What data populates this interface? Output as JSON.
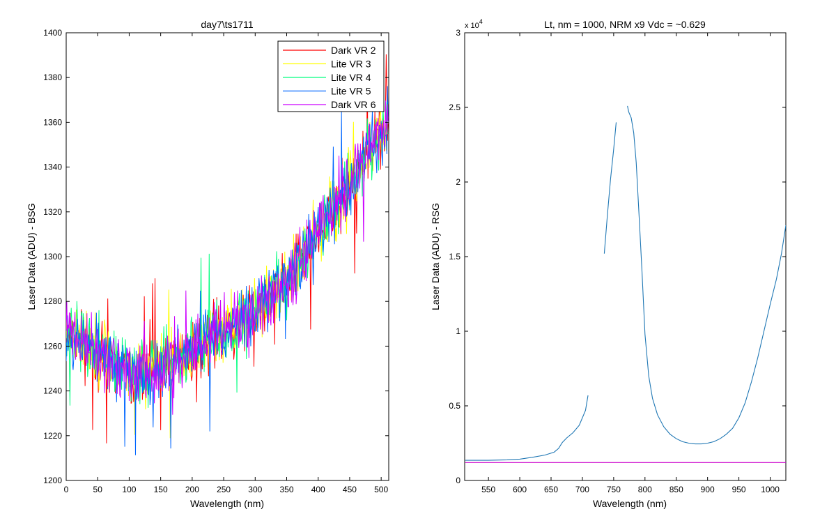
{
  "chart_data": [
    {
      "type": "line",
      "title": "day7\\ts1711",
      "xlabel": "Wavelength (nm)",
      "ylabel": "Laser Data (ADU) - BSG",
      "xlim": [
        0,
        512
      ],
      "ylim": [
        1200,
        1400
      ],
      "xticks": [
        0,
        50,
        100,
        150,
        200,
        250,
        300,
        350,
        400,
        450,
        500
      ],
      "yticks": [
        1200,
        1220,
        1240,
        1260,
        1280,
        1300,
        1320,
        1340,
        1360,
        1380,
        1400
      ],
      "legend_position": "top-right",
      "series": [
        {
          "name": "Dark VR 2",
          "color": "#ff0000",
          "seed": 11
        },
        {
          "name": "Lite VR 3",
          "color": "#ffff00",
          "seed": 23
        },
        {
          "name": "Lite VR 4",
          "color": "#00ff7f",
          "seed": 37
        },
        {
          "name": "Lite VR 5",
          "color": "#0066ff",
          "seed": 53
        },
        {
          "name": "Dark VR 6",
          "color": "#cc00ff",
          "seed": 71
        }
      ],
      "trend": {
        "x": [
          0,
          50,
          100,
          120,
          150,
          200,
          250,
          300,
          350,
          400,
          450,
          480,
          510
        ],
        "y": [
          1268,
          1257,
          1248,
          1247,
          1250,
          1258,
          1266,
          1276,
          1290,
          1310,
          1332,
          1348,
          1360
        ]
      },
      "noise_amplitude": 14
    },
    {
      "type": "line",
      "title": "Lt, nm = 1000, NRM x9 Vdc = ~0.629",
      "xlabel": "Wavelength (nm)",
      "ylabel": "Laser Data (ADU) - RSG",
      "y_multiplier": "x 10",
      "y_multiplier_exp": "4",
      "xlim": [
        512,
        1025
      ],
      "ylim": [
        0,
        3
      ],
      "xticks": [
        550,
        600,
        650,
        700,
        750,
        800,
        850,
        900,
        950,
        1000
      ],
      "yticks": [
        0,
        0.5,
        1,
        1.5,
        2,
        2.5,
        3
      ],
      "series": [
        {
          "name": "",
          "color": "#1f77b4",
          "segments": [
            {
              "x": [
                513,
                550,
                580,
                600,
                620,
                640,
                655,
                662,
                668,
                675,
                685,
                695,
                705,
                709
              ],
              "y": [
                0.135,
                0.135,
                0.138,
                0.143,
                0.155,
                0.17,
                0.19,
                0.215,
                0.255,
                0.285,
                0.32,
                0.37,
                0.47,
                0.57
              ]
            },
            {
              "x": [
                735,
                740,
                745,
                750,
                754
              ],
              "y": [
                1.52,
                1.78,
                2.02,
                2.22,
                2.4
              ]
            },
            {
              "x": [
                772,
                774,
                778,
                782,
                786,
                790,
                795,
                800,
                806,
                812,
                820,
                830,
                840,
                850,
                860,
                870,
                880,
                890,
                900,
                910,
                920,
                930,
                940,
                950,
                960,
                970,
                980,
                990,
                1000,
                1010,
                1018,
                1025
              ],
              "y": [
                2.51,
                2.47,
                2.43,
                2.33,
                2.13,
                1.82,
                1.42,
                0.98,
                0.7,
                0.55,
                0.44,
                0.36,
                0.31,
                0.28,
                0.26,
                0.25,
                0.245,
                0.245,
                0.25,
                0.26,
                0.28,
                0.31,
                0.35,
                0.42,
                0.52,
                0.66,
                0.82,
                1.0,
                1.18,
                1.35,
                1.52,
                1.71
              ]
            }
          ]
        },
        {
          "name": "",
          "color": "#cc00cc",
          "segments": [
            {
              "x": [
                513,
                1025
              ],
              "y": [
                0.12,
                0.12
              ]
            }
          ]
        }
      ]
    }
  ]
}
